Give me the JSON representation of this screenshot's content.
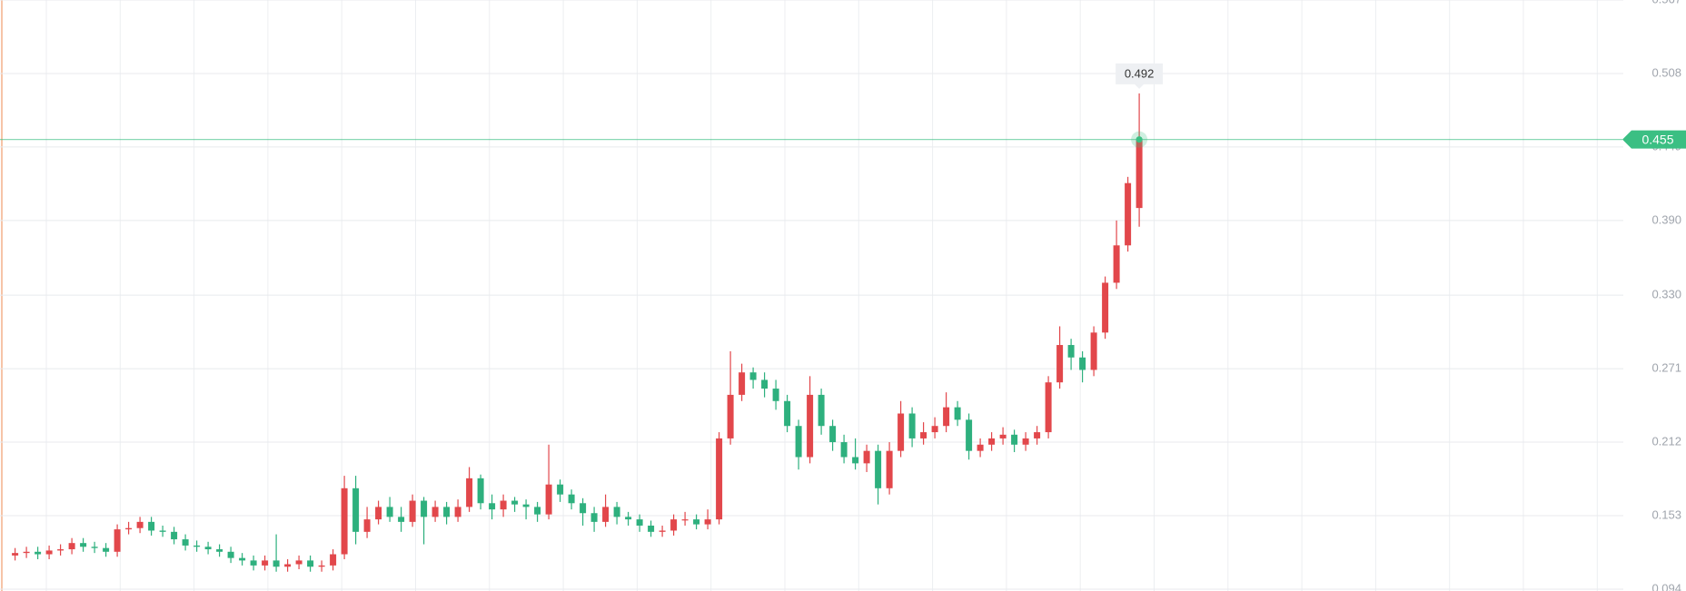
{
  "chart_data": {
    "type": "candlestick",
    "open": [
      0.121,
      0.123,
      0.124,
      0.122,
      0.125,
      0.126,
      0.131,
      0.128,
      0.127,
      0.124,
      0.142,
      0.143,
      0.148,
      0.141,
      0.14,
      0.134,
      0.129,
      0.128,
      0.126,
      0.124,
      0.119,
      0.117,
      0.113,
      0.117,
      0.112,
      0.114,
      0.117,
      0.112,
      0.113,
      0.122,
      0.175,
      0.14,
      0.15,
      0.16,
      0.152,
      0.148,
      0.165,
      0.152,
      0.16,
      0.152,
      0.16,
      0.183,
      0.163,
      0.158,
      0.165,
      0.162,
      0.16,
      0.154,
      0.178,
      0.17,
      0.163,
      0.155,
      0.148,
      0.16,
      0.152,
      0.15,
      0.145,
      0.14,
      0.141,
      0.15,
      0.15,
      0.146,
      0.15,
      0.215,
      0.25,
      0.268,
      0.262,
      0.255,
      0.245,
      0.225,
      0.2,
      0.25,
      0.225,
      0.212,
      0.2,
      0.195,
      0.205,
      0.175,
      0.205,
      0.235,
      0.215,
      0.22,
      0.225,
      0.24,
      0.23,
      0.205,
      0.21,
      0.215,
      0.218,
      0.21,
      0.215,
      0.22,
      0.26,
      0.29,
      0.28,
      0.27,
      0.3,
      0.34,
      0.37,
      0.4
    ],
    "high": [
      0.127,
      0.128,
      0.128,
      0.129,
      0.13,
      0.135,
      0.135,
      0.132,
      0.131,
      0.146,
      0.148,
      0.152,
      0.152,
      0.145,
      0.144,
      0.138,
      0.133,
      0.132,
      0.13,
      0.128,
      0.123,
      0.121,
      0.121,
      0.138,
      0.118,
      0.121,
      0.121,
      0.117,
      0.126,
      0.185,
      0.185,
      0.16,
      0.165,
      0.168,
      0.16,
      0.17,
      0.168,
      0.165,
      0.164,
      0.166,
      0.192,
      0.186,
      0.17,
      0.17,
      0.168,
      0.166,
      0.164,
      0.21,
      0.182,
      0.174,
      0.167,
      0.16,
      0.17,
      0.164,
      0.156,
      0.154,
      0.149,
      0.145,
      0.154,
      0.156,
      0.154,
      0.158,
      0.22,
      0.285,
      0.275,
      0.272,
      0.268,
      0.262,
      0.25,
      0.23,
      0.265,
      0.255,
      0.23,
      0.218,
      0.215,
      0.21,
      0.21,
      0.212,
      0.245,
      0.24,
      0.228,
      0.232,
      0.252,
      0.245,
      0.235,
      0.215,
      0.22,
      0.224,
      0.222,
      0.22,
      0.225,
      0.265,
      0.305,
      0.295,
      0.285,
      0.305,
      0.345,
      0.39,
      0.425,
      0.492
    ],
    "low": [
      0.117,
      0.119,
      0.118,
      0.118,
      0.121,
      0.122,
      0.124,
      0.123,
      0.12,
      0.12,
      0.138,
      0.139,
      0.137,
      0.136,
      0.13,
      0.125,
      0.124,
      0.122,
      0.12,
      0.115,
      0.113,
      0.109,
      0.109,
      0.108,
      0.108,
      0.11,
      0.108,
      0.108,
      0.109,
      0.118,
      0.13,
      0.135,
      0.146,
      0.148,
      0.14,
      0.144,
      0.13,
      0.148,
      0.146,
      0.148,
      0.156,
      0.158,
      0.15,
      0.152,
      0.156,
      0.15,
      0.148,
      0.15,
      0.164,
      0.158,
      0.145,
      0.14,
      0.144,
      0.146,
      0.145,
      0.14,
      0.136,
      0.136,
      0.137,
      0.145,
      0.142,
      0.142,
      0.146,
      0.21,
      0.245,
      0.255,
      0.248,
      0.238,
      0.22,
      0.19,
      0.195,
      0.218,
      0.205,
      0.195,
      0.19,
      0.188,
      0.162,
      0.17,
      0.2,
      0.208,
      0.21,
      0.215,
      0.22,
      0.225,
      0.198,
      0.2,
      0.205,
      0.21,
      0.204,
      0.205,
      0.21,
      0.215,
      0.255,
      0.27,
      0.26,
      0.265,
      0.295,
      0.335,
      0.365,
      0.385
    ],
    "close": [
      0.123,
      0.124,
      0.122,
      0.125,
      0.126,
      0.131,
      0.128,
      0.127,
      0.124,
      0.142,
      0.143,
      0.148,
      0.141,
      0.14,
      0.134,
      0.129,
      0.128,
      0.126,
      0.124,
      0.119,
      0.117,
      0.113,
      0.117,
      0.112,
      0.114,
      0.117,
      0.112,
      0.113,
      0.122,
      0.175,
      0.14,
      0.15,
      0.16,
      0.152,
      0.148,
      0.165,
      0.152,
      0.16,
      0.152,
      0.16,
      0.183,
      0.163,
      0.158,
      0.165,
      0.162,
      0.16,
      0.154,
      0.178,
      0.17,
      0.163,
      0.155,
      0.148,
      0.16,
      0.152,
      0.15,
      0.145,
      0.14,
      0.141,
      0.15,
      0.15,
      0.146,
      0.15,
      0.215,
      0.25,
      0.268,
      0.262,
      0.255,
      0.245,
      0.225,
      0.2,
      0.25,
      0.225,
      0.212,
      0.2,
      0.195,
      0.205,
      0.175,
      0.205,
      0.235,
      0.215,
      0.22,
      0.225,
      0.24,
      0.23,
      0.205,
      0.21,
      0.215,
      0.218,
      0.21,
      0.215,
      0.22,
      0.26,
      0.29,
      0.28,
      0.27,
      0.3,
      0.34,
      0.37,
      0.42,
      0.455
    ],
    "up_color": "#e2474b",
    "down_color": "#2eb07e",
    "price_line_color": "#3bbf83",
    "ylim": [
      0.0925,
      0.567
    ],
    "yticks": [
      0.094,
      0.153,
      0.212,
      0.271,
      {
        "value": 0.33,
        "label": "0.330"
      },
      {
        "value": 0.39,
        "label": "0.390"
      },
      0.449,
      0.508,
      0.567
    ],
    "grid": true
  }
}
